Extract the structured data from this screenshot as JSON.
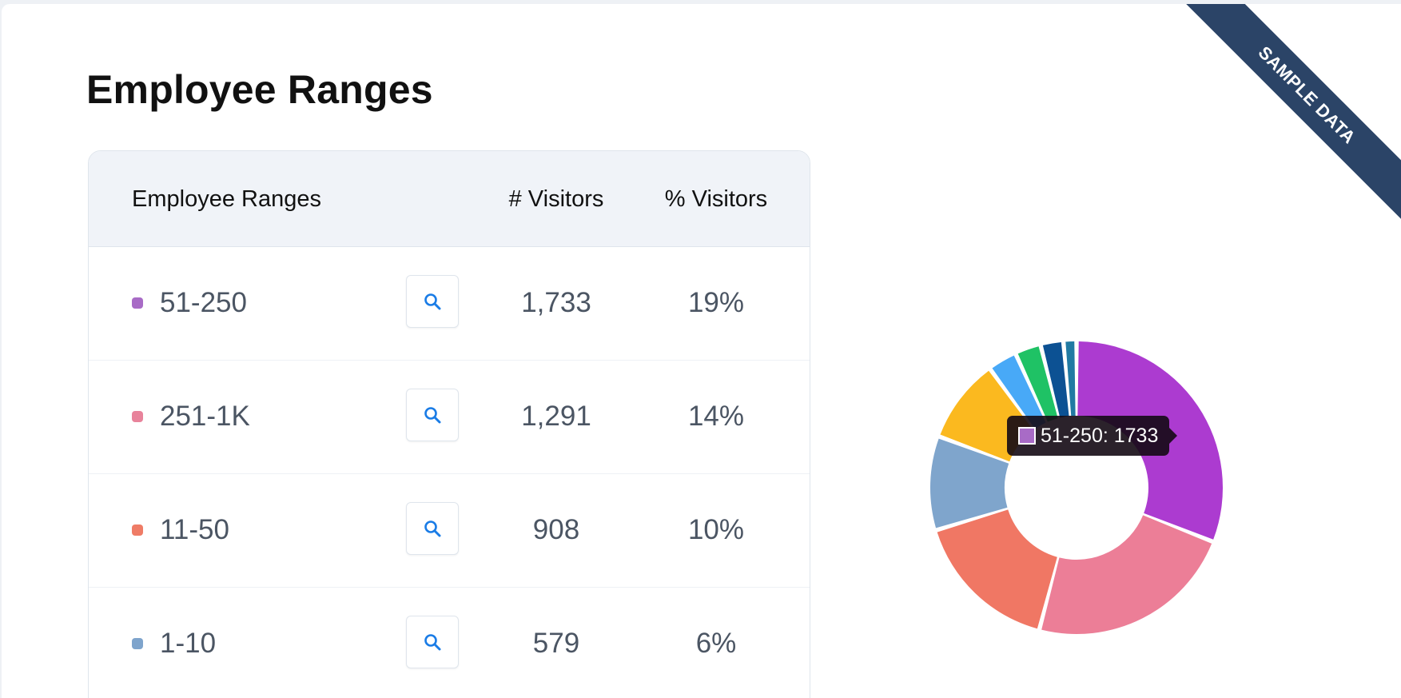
{
  "page": {
    "title": "Employee Ranges",
    "ribbon": "SAMPLE DATA"
  },
  "table": {
    "headers": {
      "name": "Employee Ranges",
      "count": "# Visitors",
      "pct": "% Visitors"
    },
    "rows": [
      {
        "label": "51-250",
        "count": "1,733",
        "pct": "19%",
        "color": "#a86bc6"
      },
      {
        "label": "251-1K",
        "count": "1,291",
        "pct": "14%",
        "color": "#e8839b"
      },
      {
        "label": "11-50",
        "count": "908",
        "pct": "10%",
        "color": "#ef7c66"
      },
      {
        "label": "1-10",
        "count": "579",
        "pct": "6%",
        "color": "#7ea4cc"
      }
    ],
    "search_icon": "search-icon"
  },
  "tooltip": {
    "text": "51-250: 1733",
    "color": "#a86bc6"
  },
  "chart_data": {
    "type": "pie",
    "categories": [
      "51-250",
      "251-1K",
      "11-50",
      "1-10",
      "",
      "",
      "",
      "",
      ""
    ],
    "values": [
      1733,
      1291,
      908,
      579,
      520,
      180,
      160,
      140,
      80
    ],
    "colors": [
      "#ac3bd0",
      "#ec7e97",
      "#f07764",
      "#7fa5cc",
      "#fbb91f",
      "#48a9f7",
      "#1fc265",
      "#0c5193",
      "#217aa3"
    ]
  }
}
